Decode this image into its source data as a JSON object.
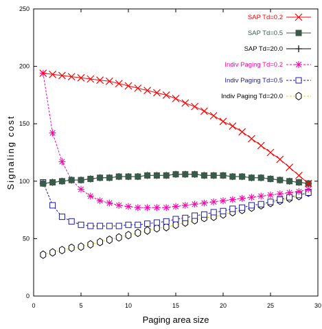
{
  "chart_data": {
    "type": "line",
    "xlabel": "Paging area size",
    "ylabel": "Signaling cost",
    "xlim": [
      0,
      30
    ],
    "ylim": [
      0,
      250
    ],
    "xticks": [
      0,
      5,
      10,
      15,
      20,
      25,
      30
    ],
    "yticks": [
      0,
      50,
      100,
      150,
      200,
      250
    ],
    "grid": false,
    "legend_position": "top-right",
    "x": [
      1,
      2,
      3,
      4,
      5,
      6,
      7,
      8,
      9,
      10,
      11,
      12,
      13,
      14,
      15,
      16,
      17,
      18,
      19,
      20,
      21,
      22,
      23,
      24,
      25,
      26,
      27,
      28,
      29
    ],
    "series": [
      {
        "name": "SAP Td=0.2",
        "color": "#ff0000",
        "marker": "x-cross",
        "dashed": false,
        "values": [
          194,
          193,
          192,
          191,
          190,
          189,
          188,
          187,
          185,
          183,
          181,
          179,
          177,
          175,
          172,
          168,
          165,
          161,
          157,
          152,
          148,
          143,
          137,
          131,
          125,
          119,
          112,
          105,
          98
        ]
      },
      {
        "name": "SAP Td=0.5",
        "color": "#3a5a4a",
        "marker": "filled-square",
        "dashed": false,
        "values": [
          98,
          99,
          100,
          101,
          101,
          102,
          103,
          103,
          104,
          104,
          104,
          105,
          105,
          105,
          106,
          106,
          106,
          105,
          105,
          105,
          104,
          104,
          103,
          103,
          102,
          101,
          100,
          99,
          98
        ]
      },
      {
        "name": "SAP Td=20.0",
        "color": "#000000",
        "marker": "plus",
        "dashed": false,
        "values": [
          98,
          99,
          100,
          101,
          101,
          102,
          103,
          103,
          104,
          104,
          104,
          105,
          105,
          105,
          106,
          106,
          106,
          105,
          105,
          105,
          104,
          104,
          103,
          103,
          102,
          101,
          100,
          99,
          98
        ]
      },
      {
        "name": "Indiv Paging Td=0.2",
        "color": "#ff00aa",
        "marker": "asterisk",
        "dashed": true,
        "values": [
          194,
          142,
          117,
          101,
          93,
          87,
          83,
          81,
          79,
          78,
          77,
          77,
          77,
          77,
          78,
          79,
          80,
          81,
          82,
          83,
          84,
          85,
          86,
          87,
          88,
          89,
          90,
          91,
          93
        ]
      },
      {
        "name": "Indiv Paging Td=0.5",
        "color": "#1a1aa0",
        "marker": "open-square",
        "dashed": true,
        "values": [
          99,
          79,
          69,
          65,
          62,
          61,
          61,
          61,
          61,
          62,
          62,
          63,
          64,
          65,
          67,
          68,
          70,
          71,
          73,
          74,
          76,
          77,
          79,
          80,
          82,
          84,
          86,
          88,
          90
        ]
      },
      {
        "name": "Indiv Paging Td=20.0",
        "color": "#000000",
        "marker": "open-hexagon",
        "dashed": true,
        "line_color": "#d8d800",
        "values": [
          36,
          38,
          40,
          42,
          43,
          45,
          47,
          49,
          51,
          53,
          55,
          57,
          59,
          60,
          62,
          64,
          66,
          68,
          69,
          71,
          73,
          75,
          77,
          79,
          81,
          83,
          85,
          87,
          90
        ]
      }
    ]
  }
}
